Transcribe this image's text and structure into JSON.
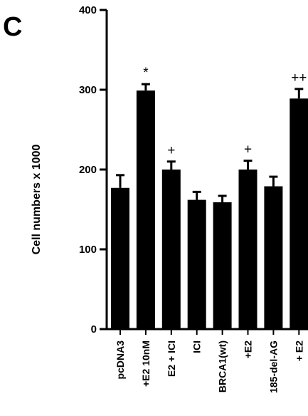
{
  "panel_letter": "C",
  "chart_data": {
    "type": "bar",
    "title": "",
    "xlabel": "",
    "ylabel": "Cell numbers x 1000",
    "ylim": [
      0,
      400
    ],
    "yticks": [
      0,
      100,
      200,
      300,
      400
    ],
    "grid": false,
    "categories": [
      "pcDNA3",
      "+E2 10nM",
      "E2 + ICI",
      "ICI",
      "BRCA1(wt)",
      "+E2",
      "185-del-AG",
      "+ E2"
    ],
    "values": [
      177,
      299,
      200,
      162,
      159,
      200,
      179,
      289
    ],
    "errors": [
      16,
      8,
      10,
      10,
      8,
      11,
      12,
      12
    ],
    "annotations": [
      "",
      "*",
      "+",
      "",
      "",
      "+",
      "",
      "++"
    ],
    "bar_color": "#000000"
  }
}
